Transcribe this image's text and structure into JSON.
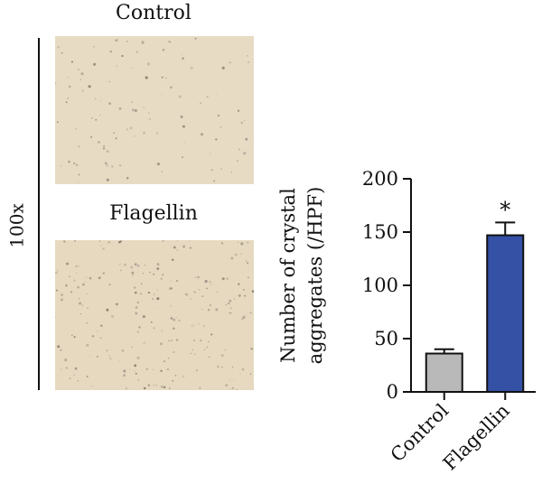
{
  "panels": {
    "magnification": "100x",
    "control_label": "Control",
    "flagellin_label": "Flagellin"
  },
  "chart_data": {
    "type": "bar",
    "categories": [
      "Control",
      "Flagellin"
    ],
    "values": [
      36,
      147
    ],
    "errors": [
      4,
      12
    ],
    "significance": [
      "",
      "*"
    ],
    "ylabel_line1": "Number of crystal",
    "ylabel_line2": "aggregates (/HPF)",
    "ylim": [
      0,
      200
    ],
    "yticks": [
      0,
      50,
      100,
      150,
      200
    ],
    "colors": [
      "#b9b9b9",
      "#3551a6"
    ],
    "grid": false
  }
}
